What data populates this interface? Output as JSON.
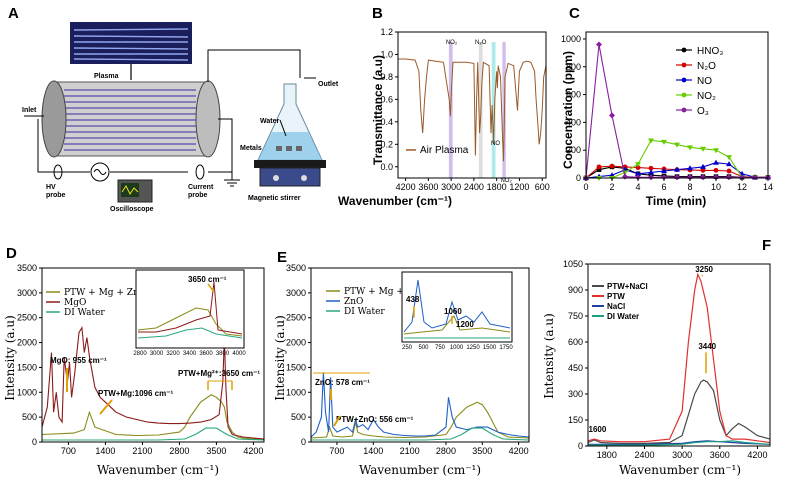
{
  "panels": {
    "A": "A",
    "B": "B",
    "C": "C",
    "D": "D",
    "E": "E",
    "F": "F"
  },
  "diagram": {
    "plasma": "Plasma",
    "inlet": "Inlet",
    "outlet": "Outlet",
    "water": "Water",
    "metals": "Metals",
    "hv_probe": "HV\nprobe",
    "current_probe": "Current\nprobe",
    "oscilloscope": "Oscilloscope",
    "stirrer": "Magnetic stirrer"
  },
  "chart_data": [
    {
      "id": "B",
      "type": "line",
      "title": "",
      "xlabel": "Wavenumber (cm⁻¹)",
      "ylabel": "Transmittance (a.u)",
      "xlim": [
        4400,
        500
      ],
      "ylim": [
        -0.1,
        1.2
      ],
      "xticks": [
        "4200",
        "3600",
        "3000",
        "2400",
        "1800",
        "1200",
        "600"
      ],
      "yticks": [
        "0.0",
        "0.2",
        "0.4",
        "0.6",
        "0.8",
        "1.0",
        "1.2"
      ],
      "legend": [
        "Air Plasma"
      ],
      "bands": [
        {
          "label": "NO₂",
          "x": [
            3060,
            2960
          ],
          "color": "#c9b3e6"
        },
        {
          "label": "N₂O",
          "x": [
            2270,
            2170
          ],
          "color": "#d8d8d8"
        },
        {
          "label": "NO",
          "x": [
            1930,
            1830
          ],
          "color": "#9fe6e6"
        },
        {
          "label": "NO₂",
          "x": [
            1650,
            1560
          ],
          "color": "#c9b3e6"
        }
      ],
      "series": [
        {
          "name": "Air Plasma",
          "color": "#9a5a2a",
          "x": [
            4400,
            4200,
            3950,
            3850,
            3800,
            3750,
            3700,
            3650,
            3600,
            3400,
            3200,
            3050,
            3020,
            2990,
            2950,
            2600,
            2400,
            2360,
            2330,
            2300,
            2250,
            2220,
            2190,
            2150,
            2000,
            1950,
            1920,
            1880,
            1850,
            1800,
            1780,
            1760,
            1700,
            1650,
            1620,
            1600,
            1580,
            1500,
            1350,
            1300,
            1250,
            1200,
            1100,
            1000,
            900,
            800,
            760,
            720,
            680,
            640,
            600,
            560,
            500
          ],
          "y": [
            0.96,
            0.96,
            0.95,
            0.85,
            0.5,
            0.3,
            0.6,
            0.8,
            0.95,
            0.94,
            0.93,
            0.6,
            0.45,
            0.7,
            0.93,
            0.93,
            0.92,
            0.1,
            0.6,
            0.93,
            0.3,
            0.45,
            0.75,
            0.93,
            0.9,
            0.3,
            0.55,
            0.2,
            0.6,
            0.85,
            0.7,
            0.9,
            0.8,
            0.3,
            0.05,
            0.4,
            0.8,
            0.92,
            0.9,
            0.7,
            0.5,
            0.85,
            0.93,
            0.94,
            0.93,
            0.85,
            0.6,
            0.4,
            0.2,
            0.3,
            0.5,
            0.8,
            0.9
          ]
        }
      ],
      "annotations": [
        "NO₂",
        "N₂O",
        "NO",
        "NO₂"
      ]
    },
    {
      "id": "C",
      "type": "line",
      "title": "",
      "xlabel": "Time (min)",
      "ylabel": "Concentration (ppm)",
      "xlim": [
        0,
        14
      ],
      "ylim": [
        0,
        1050
      ],
      "xticks": [
        "0",
        "2",
        "4",
        "6",
        "8",
        "10",
        "12",
        "14"
      ],
      "yticks": [
        "0",
        "200",
        "400",
        "600",
        "800",
        "1000"
      ],
      "legend": [
        "HNO₃",
        "N₂O",
        "NO",
        "NO₂",
        "O₃"
      ],
      "series": [
        {
          "name": "HNO₃",
          "color": "#000000",
          "marker": "square",
          "x": [
            0,
            1,
            2,
            3,
            4,
            5,
            6,
            7,
            8,
            9,
            10,
            11,
            12,
            13,
            14
          ],
          "y": [
            0,
            60,
            80,
            70,
            30,
            20,
            15,
            10,
            10,
            10,
            10,
            10,
            5,
            5,
            5
          ]
        },
        {
          "name": "N₂O",
          "color": "#d40000",
          "marker": "circle",
          "x": [
            0,
            1,
            2,
            3,
            4,
            5,
            6,
            7,
            8,
            9,
            10,
            11,
            12,
            13,
            14
          ],
          "y": [
            0,
            80,
            85,
            80,
            75,
            70,
            65,
            60,
            58,
            55,
            55,
            50,
            10,
            5,
            5
          ]
        },
        {
          "name": "NO",
          "color": "#0000cc",
          "marker": "triangle",
          "x": [
            0,
            1,
            2,
            3,
            4,
            5,
            6,
            7,
            8,
            9,
            10,
            11,
            12,
            13,
            14
          ],
          "y": [
            0,
            10,
            20,
            60,
            30,
            40,
            50,
            60,
            70,
            80,
            110,
            100,
            30,
            5,
            5
          ]
        },
        {
          "name": "NO₂",
          "color": "#66cc00",
          "marker": "triangle-down",
          "x": [
            0,
            1,
            2,
            3,
            4,
            5,
            6,
            7,
            8,
            9,
            10,
            11,
            12,
            13,
            14
          ],
          "y": [
            0,
            0,
            0,
            40,
            100,
            270,
            260,
            240,
            220,
            210,
            200,
            150,
            5,
            5,
            5
          ]
        },
        {
          "name": "O₃",
          "color": "#8a1ea0",
          "marker": "diamond",
          "x": [
            0,
            1,
            2,
            3,
            4,
            5,
            6,
            7,
            8,
            9,
            10,
            11,
            12,
            13,
            14
          ],
          "y": [
            0,
            960,
            450,
            10,
            5,
            5,
            5,
            5,
            5,
            5,
            5,
            5,
            5,
            5,
            5
          ]
        }
      ]
    },
    {
      "id": "D",
      "type": "line",
      "title": "",
      "xlabel": "Wavenumber (cm⁻¹)",
      "ylabel": "Intensity (a.u)",
      "xlim": [
        200,
        4400
      ],
      "ylim": [
        0,
        3500
      ],
      "xticks": [
        "700",
        "1400",
        "2100",
        "2800",
        "3500",
        "4200"
      ],
      "yticks": [
        "0",
        "500",
        "1000",
        "1500",
        "2000",
        "2500",
        "3000",
        "3500"
      ],
      "legend": [
        "PTW + Mg + Zn",
        "MgO",
        "DI Water"
      ],
      "series": [
        {
          "name": "PTW + Mg + Zn",
          "color": "#8a8a1a",
          "x": [
            200,
            800,
            1000,
            1096,
            1200,
            1600,
            2000,
            2400,
            2800,
            2900,
            3000,
            3200,
            3400,
            3500,
            3600,
            3650,
            3700,
            3800,
            3900,
            4000,
            4200,
            4400
          ],
          "y": [
            150,
            180,
            250,
            600,
            300,
            150,
            130,
            140,
            200,
            300,
            500,
            800,
            950,
            900,
            800,
            700,
            400,
            200,
            100,
            80,
            60,
            60
          ]
        },
        {
          "name": "MgO",
          "color": "#8b1a1a",
          "x": [
            200,
            300,
            380,
            420,
            470,
            520,
            580,
            620,
            680,
            720,
            760,
            820,
            900,
            955,
            1000,
            1050,
            1100,
            1150,
            1200,
            1300,
            1400,
            1500,
            1600,
            1800,
            2000,
            2200,
            2400,
            2600,
            2800,
            3000,
            3200,
            3400,
            3550,
            3620,
            3650,
            3680,
            3720,
            3800,
            4000,
            4200,
            4400
          ],
          "y": [
            300,
            700,
            1800,
            600,
            1000,
            500,
            400,
            1700,
            1200,
            1600,
            900,
            1400,
            2200,
            2300,
            1800,
            2100,
            1700,
            1400,
            1100,
            900,
            800,
            700,
            600,
            500,
            450,
            400,
            380,
            370,
            370,
            380,
            400,
            450,
            550,
            1200,
            2100,
            1100,
            300,
            150,
            100,
            80,
            60
          ]
        },
        {
          "name": "DI Water",
          "color": "#2aa87a",
          "x": [
            200,
            800,
            1600,
            2400,
            2900,
            3100,
            3300,
            3500,
            3700,
            3900,
            4400
          ],
          "y": [
            40,
            40,
            40,
            40,
            60,
            150,
            280,
            280,
            150,
            60,
            40
          ]
        }
      ],
      "inset": {
        "label": "3650 cm⁻¹",
        "xticks": [
          "2800",
          "3000",
          "3200",
          "3400",
          "3600",
          "3800",
          "4000"
        ]
      },
      "annotations": [
        "MgO: 955 cm⁻¹",
        "PTW+Mg:1096 cm⁻¹",
        "PTW+Mg²⁺:3650 cm⁻¹"
      ]
    },
    {
      "id": "E",
      "type": "line",
      "title": "",
      "xlabel": "Wavenumber (cm⁻¹)",
      "ylabel": "Intensity (a.u)",
      "xlim": [
        200,
        4400
      ],
      "ylim": [
        0,
        3500
      ],
      "xticks": [
        "700",
        "1400",
        "2100",
        "2800",
        "3500",
        "4200"
      ],
      "yticks": [
        "0",
        "500",
        "1000",
        "1500",
        "2000",
        "2500",
        "3000",
        "3500"
      ],
      "legend": [
        "PTW + Mg + Zn",
        "ZnO",
        "DI Water"
      ],
      "series": [
        {
          "name": "PTW + Mg + Zn",
          "color": "#8a8a1a",
          "x": [
            200,
            500,
            556,
            620,
            800,
            1000,
            1060,
            1100,
            1200,
            1400,
            1600,
            2000,
            2400,
            2800,
            2900,
            3000,
            3200,
            3400,
            3500,
            3600,
            3700,
            3800,
            4000,
            4400
          ],
          "y": [
            80,
            100,
            300,
            120,
            100,
            120,
            400,
            200,
            150,
            120,
            100,
            90,
            100,
            150,
            300,
            500,
            700,
            800,
            750,
            600,
            400,
            200,
            100,
            80
          ]
        },
        {
          "name": "ZnO",
          "color": "#1f5fc8",
          "x": [
            200,
            300,
            400,
            438,
            480,
            540,
            578,
            620,
            700,
            800,
            900,
            1000,
            1060,
            1100,
            1200,
            1300,
            1400,
            1500,
            1600,
            1800,
            2000,
            2200,
            2400,
            2600,
            2800,
            2850,
            2920,
            3000,
            3200,
            3400,
            3600,
            3800,
            4000,
            4200,
            4400
          ],
          "y": [
            100,
            200,
            500,
            1400,
            600,
            200,
            1300,
            300,
            200,
            250,
            300,
            200,
            450,
            300,
            350,
            250,
            450,
            300,
            200,
            150,
            130,
            120,
            120,
            140,
            300,
            900,
            500,
            300,
            250,
            300,
            300,
            200,
            150,
            120,
            100
          ]
        },
        {
          "name": "DI Water",
          "color": "#2aa87a",
          "x": [
            200,
            800,
            1600,
            2400,
            2900,
            3100,
            3300,
            3500,
            3700,
            3900,
            4400
          ],
          "y": [
            40,
            40,
            40,
            40,
            60,
            150,
            280,
            280,
            150,
            60,
            40
          ]
        }
      ],
      "inset": {
        "labels": [
          "438",
          "1060",
          "1200"
        ],
        "xticks": [
          "250",
          "500",
          "750",
          "1000",
          "1250",
          "1500",
          "1750"
        ]
      },
      "annotations": [
        "ZnO: 578 cm⁻¹",
        "PTW+ZnO: 556 cm⁻¹"
      ]
    },
    {
      "id": "F",
      "type": "line",
      "title": "",
      "xlabel": "Wavenumber (cm⁻¹)",
      "ylabel": "Intensity (a.u)",
      "xlim": [
        1500,
        4400
      ],
      "ylim": [
        0,
        1050
      ],
      "xticks": [
        "1800",
        "2400",
        "3000",
        "3600",
        "4200"
      ],
      "yticks": [
        "0",
        "150",
        "300",
        "450",
        "600",
        "750",
        "900",
        "1050"
      ],
      "legend": [
        "PTW+NaCl",
        "PTW",
        "NaCl",
        "DI Water"
      ],
      "series": [
        {
          "name": "PTW+NaCl",
          "color": "#4a4a4a",
          "x": [
            1500,
            1600,
            1700,
            2000,
            2400,
            2800,
            3000,
            3100,
            3200,
            3300,
            3340,
            3400,
            3500,
            3600,
            3700,
            3800,
            3900,
            4000,
            4200,
            4400
          ],
          "y": [
            20,
            35,
            20,
            15,
            15,
            20,
            60,
            180,
            300,
            370,
            380,
            370,
            320,
            150,
            60,
            100,
            130,
            110,
            60,
            40
          ]
        },
        {
          "name": "PTW",
          "color": "#e03030",
          "x": [
            1500,
            1600,
            1700,
            2000,
            2400,
            2800,
            3000,
            3100,
            3200,
            3250,
            3300,
            3400,
            3500,
            3600,
            3700,
            3800,
            3900,
            4000,
            4200,
            4400
          ],
          "y": [
            30,
            40,
            30,
            25,
            25,
            40,
            200,
            600,
            900,
            990,
            950,
            800,
            500,
            200,
            60,
            40,
            40,
            40,
            30,
            20
          ]
        },
        {
          "name": "NaCl",
          "color": "#2040a0",
          "x": [
            1500,
            1700,
            2400,
            3000,
            3200,
            3400,
            3600,
            3800,
            4000,
            4400
          ],
          "y": [
            10,
            10,
            10,
            15,
            25,
            30,
            25,
            20,
            15,
            10
          ]
        },
        {
          "name": "DI Water",
          "color": "#1aa080",
          "x": [
            1500,
            1700,
            2400,
            3000,
            3200,
            3400,
            3600,
            3800,
            4000,
            4400
          ],
          "y": [
            5,
            5,
            5,
            10,
            20,
            25,
            25,
            30,
            20,
            10
          ]
        }
      ],
      "annotations": [
        "1600",
        "3250",
        "3440"
      ]
    }
  ]
}
